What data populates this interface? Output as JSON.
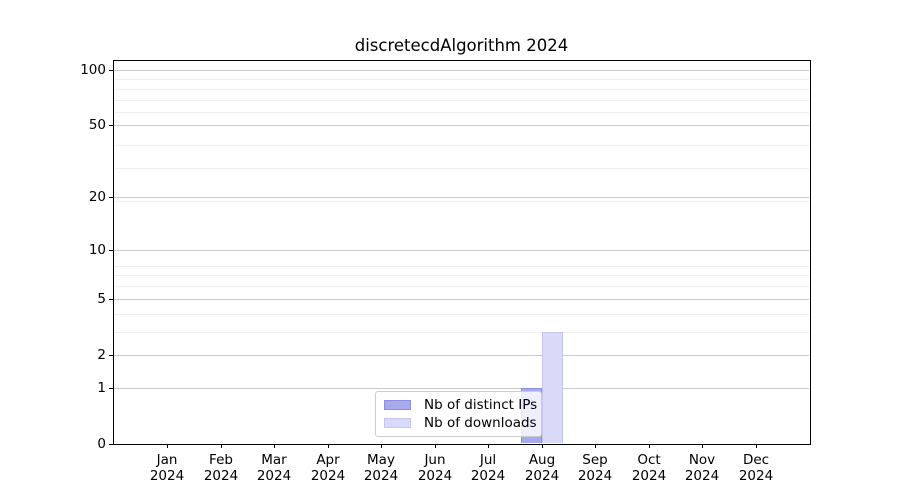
{
  "chart_data": {
    "type": "bar",
    "title": "discretecdAlgorithm 2024",
    "categories": [
      "Jan 2024",
      "Feb 2024",
      "Mar 2024",
      "Apr 2024",
      "May 2024",
      "Jun 2024",
      "Jul 2024",
      "Aug 2024",
      "Sep 2024",
      "Oct 2024",
      "Nov 2024",
      "Dec 2024"
    ],
    "series": [
      {
        "name": "Nb of distinct IPs",
        "color": "#a9a9ee",
        "edge_color": "#8f8fdf",
        "values": [
          0,
          0,
          0,
          0,
          0,
          0,
          0,
          1,
          0,
          0,
          0,
          0
        ]
      },
      {
        "name": "Nb of downloads",
        "color": "#d9d9f8",
        "edge_color": "#c4c4ef",
        "values": [
          0,
          0,
          0,
          0,
          0,
          0,
          0,
          3,
          0,
          0,
          0,
          0
        ]
      }
    ],
    "yticks": [
      0,
      1,
      2,
      5,
      10,
      20,
      50,
      100
    ],
    "ylim": [
      0,
      113
    ],
    "yscale": "log10(value+1)",
    "grid": "major and minor horizontal",
    "legend_position": "inside bottom center",
    "xlabel": "",
    "ylabel": ""
  },
  "styles": {
    "background": "#ffffff",
    "major_grid_color": "#c9c9c9",
    "minor_grid_color": "#eeeeee",
    "axis_color": "#000000",
    "text_color": "#000000",
    "legend_border_color": "#cccccc"
  }
}
